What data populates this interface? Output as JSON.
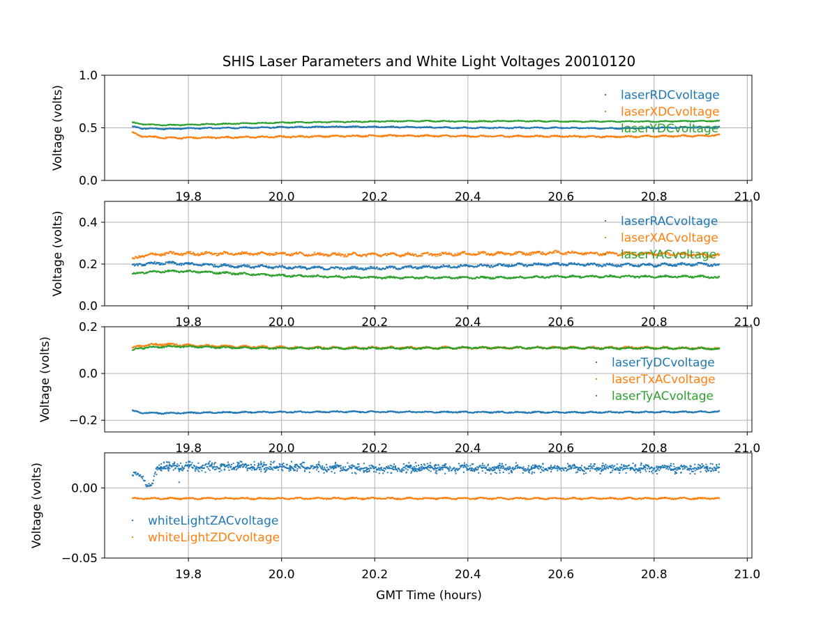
{
  "title": "SHIS Laser Parameters and White Light Voltages 20010120",
  "xlabel": "GMT Time (hours)",
  "chart_data": [
    {
      "type": "scatter",
      "ylabel": "Voltage (volts)",
      "xlim": [
        19.62,
        21.01
      ],
      "ylim": [
        0.0,
        1.0
      ],
      "xticks": [
        19.8,
        20.0,
        20.2,
        20.4,
        20.6,
        20.8,
        21.0
      ],
      "xtick_labels": [
        "19.8",
        "20.0",
        "20.2",
        "20.4",
        "20.6",
        "20.8",
        "21.0"
      ],
      "yticks": [
        0.0,
        0.5,
        1.0
      ],
      "ytick_labels": [
        "0.0",
        "0.5",
        "1.0"
      ],
      "grid": true,
      "legend": "upper right",
      "series": [
        {
          "name": "laserRDCvoltage",
          "color": "#1f77b4",
          "x": [
            19.68,
            19.7,
            19.75,
            19.8,
            19.9,
            20.0,
            20.1,
            20.2,
            20.3,
            20.4,
            20.5,
            20.6,
            20.7,
            20.8,
            20.9,
            20.94
          ],
          "y": [
            0.51,
            0.495,
            0.49,
            0.495,
            0.5,
            0.505,
            0.51,
            0.51,
            0.505,
            0.5,
            0.5,
            0.5,
            0.495,
            0.5,
            0.505,
            0.505
          ],
          "noise": 0.006
        },
        {
          "name": "laserXDCvoltage",
          "color": "#ff7f0e",
          "x": [
            19.68,
            19.7,
            19.75,
            19.8,
            19.9,
            20.0,
            20.1,
            20.2,
            20.3,
            20.4,
            20.5,
            20.6,
            20.7,
            20.8,
            20.9,
            20.94
          ],
          "y": [
            0.45,
            0.42,
            0.405,
            0.405,
            0.41,
            0.415,
            0.42,
            0.425,
            0.425,
            0.42,
            0.42,
            0.42,
            0.415,
            0.42,
            0.425,
            0.43
          ],
          "noise": 0.008
        },
        {
          "name": "laserYDCvoltage",
          "color": "#2ca02c",
          "x": [
            19.68,
            19.7,
            19.75,
            19.8,
            19.9,
            20.0,
            20.1,
            20.2,
            20.3,
            20.4,
            20.5,
            20.6,
            20.7,
            20.8,
            20.9,
            20.94
          ],
          "y": [
            0.55,
            0.535,
            0.525,
            0.53,
            0.54,
            0.55,
            0.555,
            0.56,
            0.565,
            0.56,
            0.565,
            0.56,
            0.56,
            0.56,
            0.565,
            0.565
          ],
          "noise": 0.005
        }
      ]
    },
    {
      "type": "scatter",
      "ylabel": "Voltage (volts)",
      "xlim": [
        19.62,
        21.01
      ],
      "ylim": [
        0.0,
        0.5
      ],
      "xticks": [
        19.8,
        20.0,
        20.2,
        20.4,
        20.6,
        20.8,
        21.0
      ],
      "xtick_labels": [
        "19.8",
        "20.0",
        "20.2",
        "20.4",
        "20.6",
        "20.8",
        "21.0"
      ],
      "yticks": [
        0.0,
        0.2,
        0.4
      ],
      "ytick_labels": [
        "0.0",
        "0.2",
        "0.4"
      ],
      "grid": true,
      "legend": "upper right",
      "series": [
        {
          "name": "laserRACvoltage",
          "color": "#1f77b4",
          "x": [
            19.68,
            19.7,
            19.75,
            19.8,
            19.9,
            20.0,
            20.1,
            20.2,
            20.3,
            20.4,
            20.5,
            20.6,
            20.7,
            20.8,
            20.9,
            20.94
          ],
          "y": [
            0.19,
            0.2,
            0.205,
            0.2,
            0.19,
            0.185,
            0.18,
            0.18,
            0.185,
            0.19,
            0.195,
            0.2,
            0.195,
            0.195,
            0.2,
            0.195
          ],
          "noise": 0.007
        },
        {
          "name": "laserXACvoltage",
          "color": "#ff7f0e",
          "x": [
            19.68,
            19.7,
            19.75,
            19.8,
            19.9,
            20.0,
            20.1,
            20.2,
            20.3,
            20.4,
            20.5,
            20.6,
            20.7,
            20.8,
            20.9,
            20.94
          ],
          "y": [
            0.22,
            0.24,
            0.25,
            0.25,
            0.25,
            0.25,
            0.245,
            0.245,
            0.245,
            0.25,
            0.25,
            0.255,
            0.25,
            0.25,
            0.245,
            0.24
          ],
          "noise": 0.008
        },
        {
          "name": "laserYACvoltage",
          "color": "#2ca02c",
          "x": [
            19.68,
            19.7,
            19.75,
            19.8,
            19.9,
            20.0,
            20.1,
            20.2,
            20.3,
            20.4,
            20.5,
            20.6,
            20.7,
            20.8,
            20.9,
            20.94
          ],
          "y": [
            0.15,
            0.16,
            0.165,
            0.165,
            0.155,
            0.145,
            0.14,
            0.135,
            0.135,
            0.135,
            0.135,
            0.14,
            0.14,
            0.14,
            0.14,
            0.135
          ],
          "noise": 0.005
        }
      ]
    },
    {
      "type": "scatter",
      "ylabel": "Voltage (volts)",
      "xlim": [
        19.62,
        21.01
      ],
      "ylim": [
        -0.25,
        0.2
      ],
      "xticks": [
        19.8,
        20.0,
        20.2,
        20.4,
        20.6,
        20.8,
        21.0
      ],
      "xtick_labels": [
        "19.8",
        "20.0",
        "20.2",
        "20.4",
        "20.6",
        "20.8",
        "21.0"
      ],
      "yticks": [
        -0.2,
        0.0,
        0.2
      ],
      "ytick_labels": [
        "−0.2",
        "0.0",
        "0.2"
      ],
      "grid": true,
      "legend": "center right",
      "series": [
        {
          "name": "laserTyDCvoltage",
          "color": "#1f77b4",
          "x": [
            19.68,
            19.7,
            19.75,
            19.8,
            19.9,
            20.0,
            20.1,
            20.2,
            20.3,
            20.4,
            20.5,
            20.6,
            20.7,
            20.8,
            20.9,
            20.94
          ],
          "y": [
            -0.16,
            -0.168,
            -0.17,
            -0.168,
            -0.166,
            -0.165,
            -0.164,
            -0.164,
            -0.165,
            -0.165,
            -0.166,
            -0.166,
            -0.166,
            -0.165,
            -0.164,
            -0.163
          ],
          "noise": 0.003
        },
        {
          "name": "laserTxACvoltage",
          "color": "#ff7f0e",
          "x": [
            19.68,
            19.7,
            19.75,
            19.8,
            19.9,
            20.0,
            20.1,
            20.2,
            20.3,
            20.4,
            20.5,
            20.6,
            20.7,
            20.8,
            20.9,
            20.94
          ],
          "y": [
            0.11,
            0.12,
            0.125,
            0.12,
            0.115,
            0.112,
            0.11,
            0.11,
            0.11,
            0.11,
            0.11,
            0.11,
            0.11,
            0.11,
            0.108,
            0.107
          ],
          "noise": 0.005
        },
        {
          "name": "laserTyACvoltage",
          "color": "#2ca02c",
          "x": [
            19.68,
            19.7,
            19.75,
            19.8,
            19.9,
            20.0,
            20.1,
            20.2,
            20.3,
            20.4,
            20.5,
            20.6,
            20.7,
            20.8,
            20.9,
            20.94
          ],
          "y": [
            0.1,
            0.11,
            0.115,
            0.115,
            0.11,
            0.108,
            0.108,
            0.108,
            0.108,
            0.11,
            0.11,
            0.11,
            0.108,
            0.108,
            0.107,
            0.105
          ],
          "noise": 0.004
        }
      ]
    },
    {
      "type": "scatter",
      "ylabel": "Voltage (volts)",
      "xlim": [
        19.62,
        21.01
      ],
      "ylim": [
        -0.05,
        0.025
      ],
      "xticks": [
        19.8,
        20.0,
        20.2,
        20.4,
        20.6,
        20.8,
        21.0
      ],
      "xtick_labels": [
        "19.8",
        "20.0",
        "20.2",
        "20.4",
        "20.6",
        "20.8",
        "21.0"
      ],
      "yticks": [
        -0.05,
        0.0
      ],
      "ytick_labels": [
        "−0.05",
        "0.00"
      ],
      "grid": true,
      "legend": "lower left",
      "series": [
        {
          "name": "whiteLightZACvoltage",
          "color": "#1f77b4",
          "x": [
            19.68,
            19.7,
            19.705,
            19.71,
            19.72,
            19.725,
            19.73,
            19.74,
            19.8,
            20.0,
            20.2,
            20.4,
            20.6,
            20.8,
            20.94
          ],
          "y": [
            0.009,
            0.009,
            0.007,
            0.002,
            0.001,
            0.004,
            0.013,
            0.015,
            0.015,
            0.015,
            0.014,
            0.014,
            0.014,
            0.014,
            0.014
          ],
          "noise": 0.0018
        },
        {
          "name": "whiteLightZDCvoltage",
          "color": "#ff7f0e",
          "x": [
            19.68,
            19.8,
            20.0,
            20.2,
            20.4,
            20.6,
            20.8,
            20.94
          ],
          "y": [
            -0.0075,
            -0.0075,
            -0.0075,
            -0.0075,
            -0.0075,
            -0.0075,
            -0.0075,
            -0.0075
          ],
          "noise": 0.0006
        }
      ]
    }
  ]
}
